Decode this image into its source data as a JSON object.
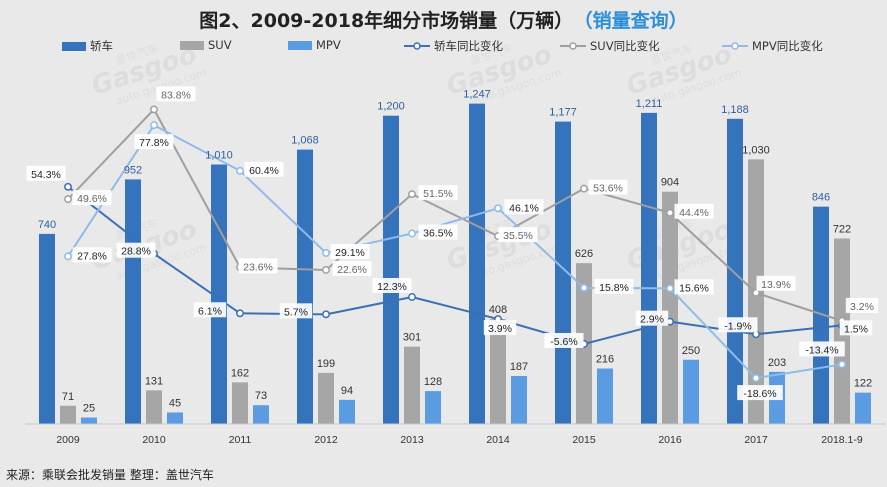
{
  "title": "图2、2009-2018年细分市场销量（万辆）",
  "title_query": "（销量查询）",
  "source": "来源：乘联会批发销量  整理：盖世汽车",
  "watermark": {
    "brand": "Gasgoo",
    "cn": "盖世汽车",
    "url": "auto.gasgoo.com"
  },
  "colors": {
    "sedan": "#3573bd",
    "suv": "#a6a6a6",
    "mpv": "#5b9be1",
    "sedan_line": "#3b6fb6",
    "suv_line": "#9f9f9f",
    "mpv_line": "#8ebbe9",
    "title_accent": "#2f8fd8"
  },
  "legend": [
    {
      "label": "轿车",
      "kind": "bar",
      "color": "#3573bd"
    },
    {
      "label": "SUV",
      "kind": "bar",
      "color": "#a6a6a6"
    },
    {
      "label": "MPV",
      "kind": "bar",
      "color": "#5b9be1"
    },
    {
      "label": "轿车同比变化",
      "kind": "line",
      "color": "#3b6fb6"
    },
    {
      "label": "SUV同比变化",
      "kind": "line",
      "color": "#9f9f9f"
    },
    {
      "label": "MPV同比变化",
      "kind": "line",
      "color": "#8ebbe9"
    }
  ],
  "chart_data": {
    "type": "bar",
    "title": "图2、2009-2018年细分市场销量（万辆）",
    "categories": [
      "2009",
      "2010",
      "2011",
      "2012",
      "2013",
      "2014",
      "2015",
      "2016",
      "2017",
      "2018.1-9"
    ],
    "series": [
      {
        "name": "轿车",
        "values": [
          740,
          952,
          1010,
          1068,
          1200,
          1247,
          1177,
          1211,
          1188,
          846
        ],
        "labels": [
          "740",
          "952",
          "1,010",
          "1,068",
          "1,200",
          "1,247",
          "1,177",
          "1,211",
          "1,188",
          "846"
        ]
      },
      {
        "name": "SUV",
        "values": [
          71,
          131,
          162,
          199,
          301,
          408,
          626,
          904,
          1030,
          722
        ],
        "labels": [
          "71",
          "131",
          "162",
          "199",
          "301",
          "408",
          "626",
          "904",
          "1,030",
          "722"
        ]
      },
      {
        "name": "MPV",
        "values": [
          25,
          45,
          73,
          94,
          128,
          187,
          216,
          250,
          203,
          122
        ],
        "labels": [
          "25",
          "45",
          "73",
          "94",
          "128",
          "187",
          "216",
          "250",
          "203",
          "122"
        ]
      }
    ],
    "line_series": [
      {
        "name": "轿车同比变化",
        "values": [
          54.3,
          28.8,
          6.1,
          5.7,
          12.3,
          3.9,
          -5.6,
          2.9,
          -1.9,
          1.5
        ],
        "labels": [
          "54.3%",
          "28.8%",
          "6.1%",
          "5.7%",
          "12.3%",
          "3.9%",
          "-5.6%",
          "2.9%",
          "-1.9%",
          "1.5%"
        ]
      },
      {
        "name": "SUV同比变化",
        "values": [
          49.6,
          83.8,
          23.6,
          22.6,
          51.5,
          35.5,
          53.6,
          44.4,
          13.9,
          3.2
        ],
        "labels": [
          "49.6%",
          "83.8%",
          "23.6%",
          "22.6%",
          "51.5%",
          "35.5%",
          "53.6%",
          "44.4%",
          "13.9%",
          "3.2%"
        ]
      },
      {
        "name": "MPV同比变化",
        "values": [
          27.8,
          77.8,
          60.4,
          29.1,
          36.5,
          46.1,
          15.8,
          15.6,
          -18.6,
          -13.4
        ],
        "labels": [
          "27.8%",
          "77.8%",
          "60.4%",
          "29.1%",
          "36.5%",
          "46.1%",
          "15.8%",
          "15.6%",
          "-18.6%",
          "-13.4%"
        ]
      }
    ],
    "ylim": [
      0,
      1300
    ],
    "y2lim": [
      -30,
      95
    ],
    "grid": false,
    "legend_position": "top"
  }
}
